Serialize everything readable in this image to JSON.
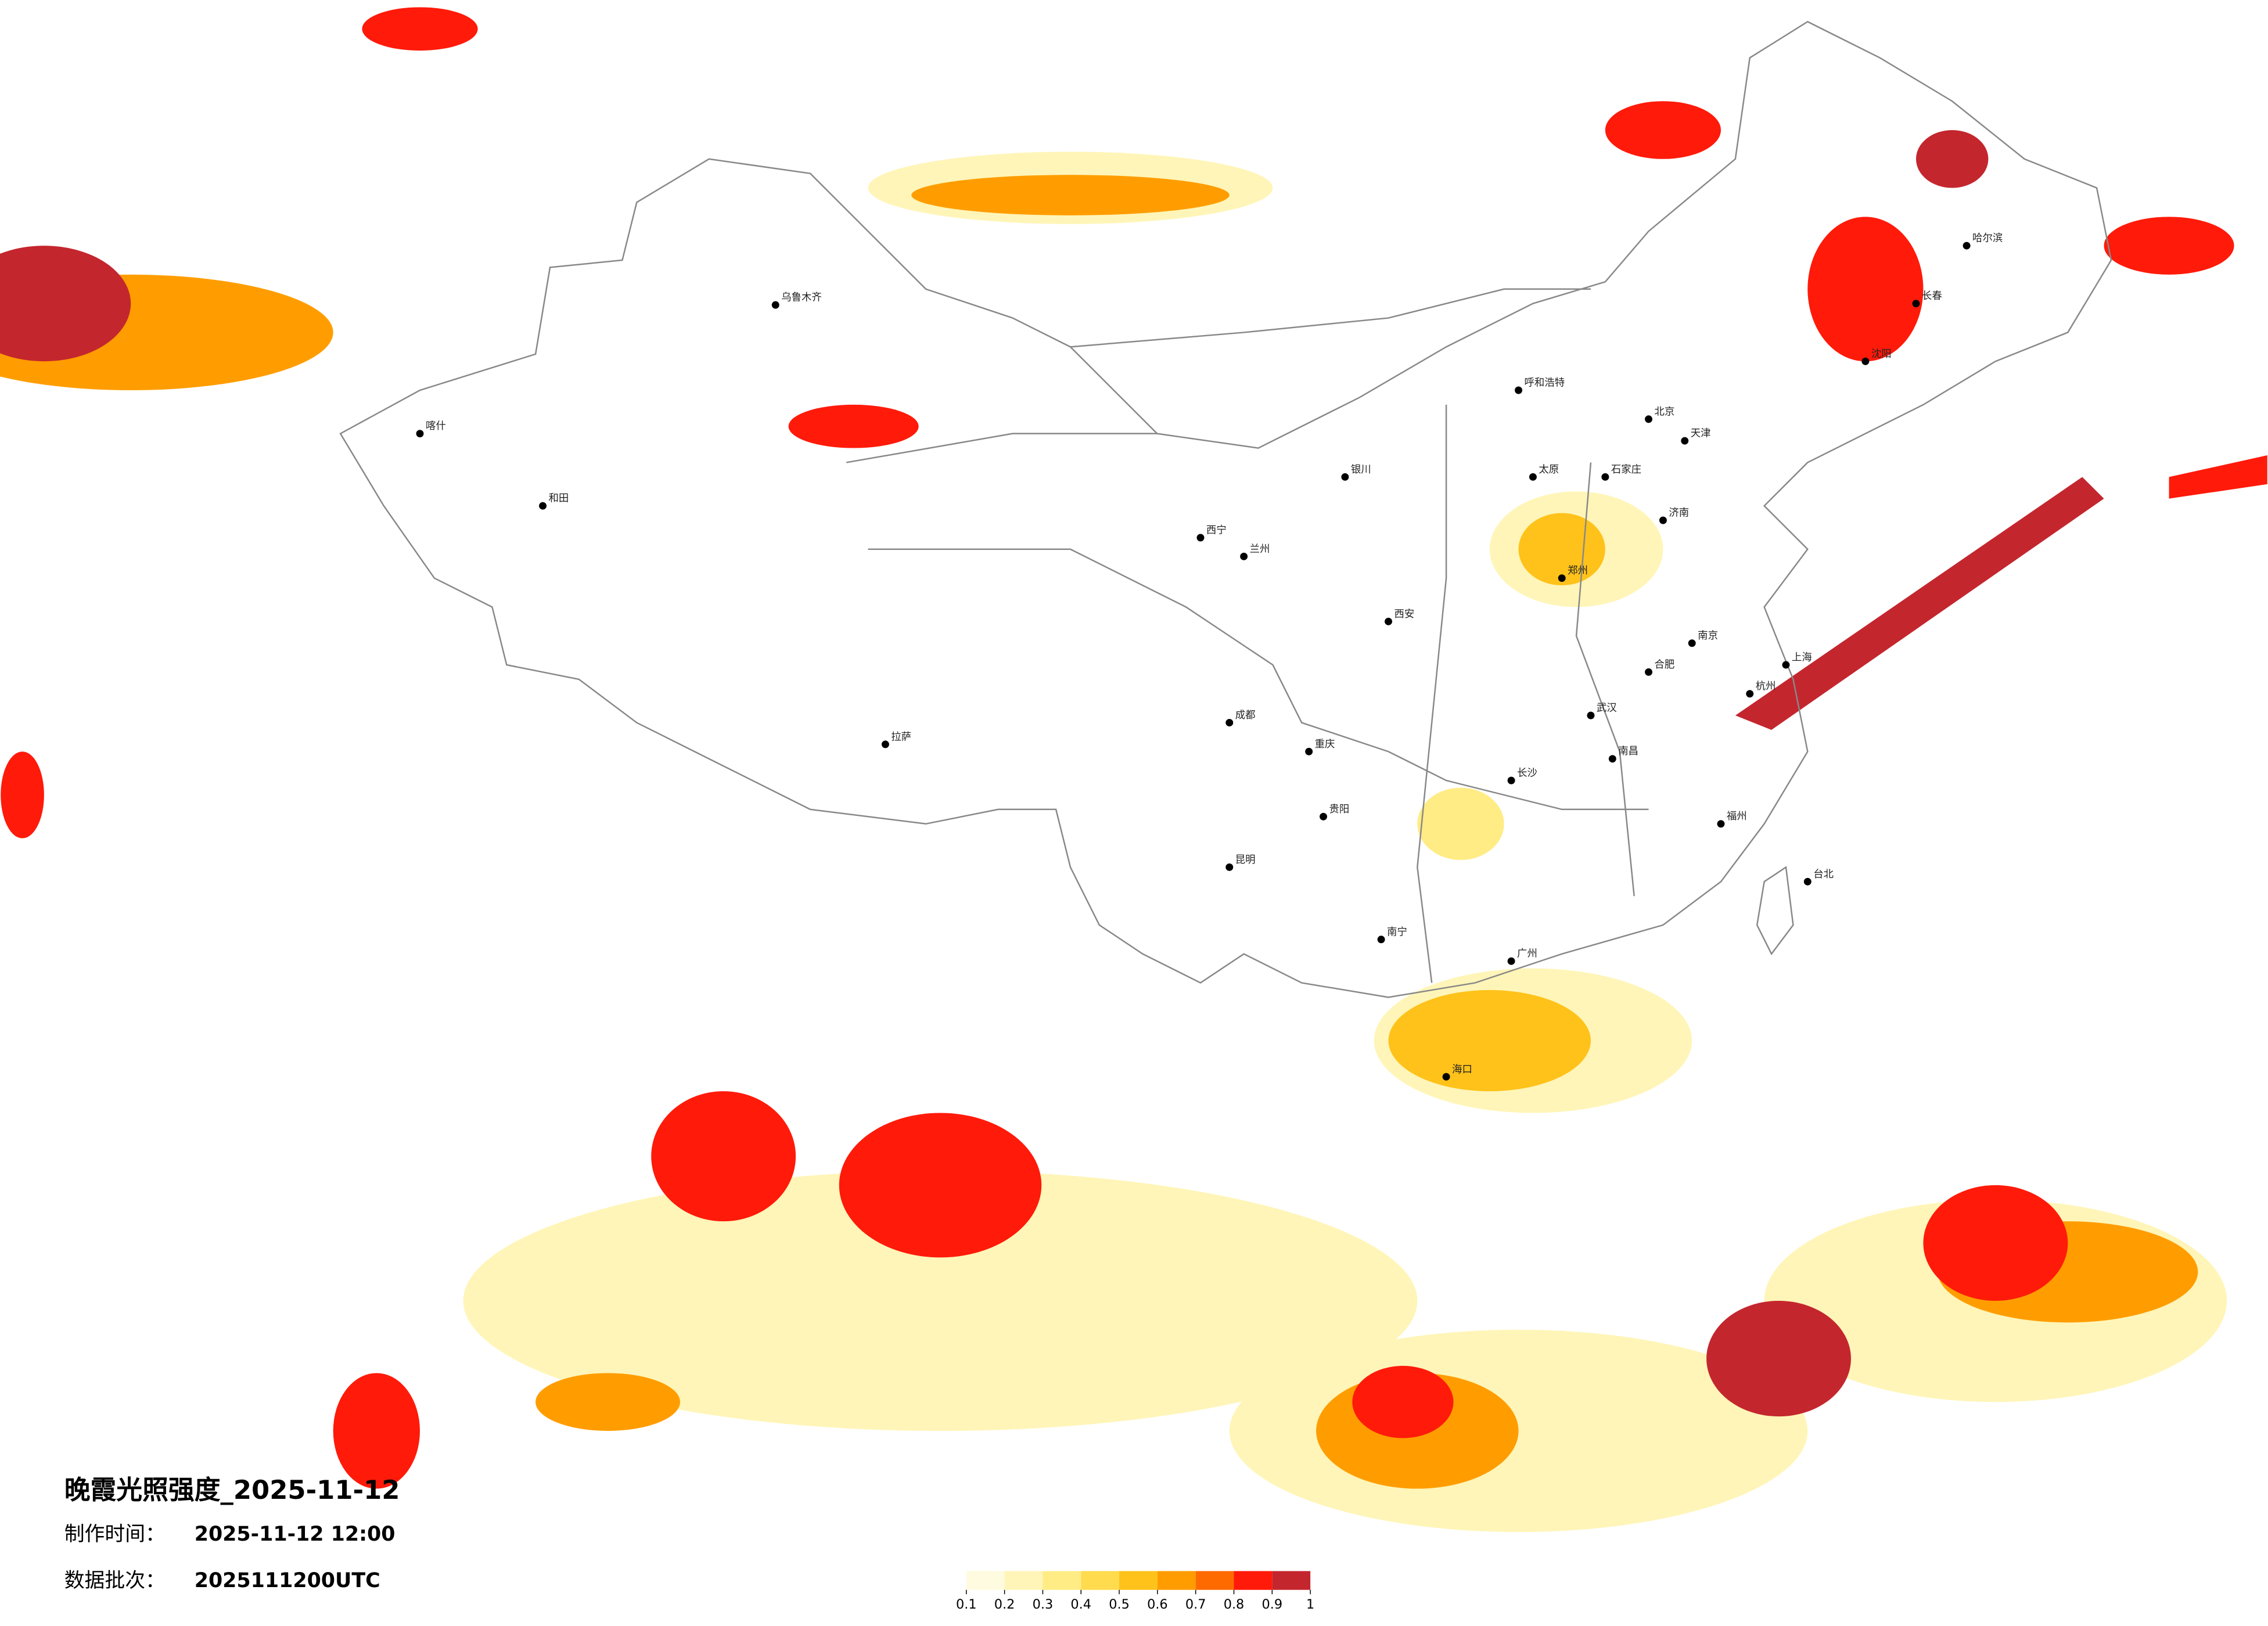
{
  "title": "晚霞光照强度_2025-11-12",
  "make_time": {
    "label": "制作时间：",
    "value": "2025-11-12 12:00"
  },
  "batch": {
    "label": "数据批次：",
    "value": "2025111200UTC"
  },
  "legend": {
    "ticks": [
      0.1,
      0.2,
      0.3,
      0.4,
      0.5,
      0.6,
      0.7,
      0.8,
      0.9,
      1
    ],
    "colors": [
      "#fffbe0",
      "#fff5b8",
      "#ffec85",
      "#ffdb4d",
      "#ffc21a",
      "#ff9d00",
      "#ff6a00",
      "#ff1a0a",
      "#c4262e"
    ]
  },
  "cities": [
    "乌鲁木齐",
    "拉萨",
    "西宁",
    "兰州",
    "成都",
    "重庆",
    "昆明",
    "贵阳",
    "南宁",
    "广州",
    "长沙",
    "武汉",
    "郑州",
    "西安",
    "太原",
    "石家庄",
    "北京",
    "天津",
    "济南",
    "南京",
    "上海",
    "杭州",
    "福州",
    "南昌",
    "合肥",
    "哈尔滨",
    "长春",
    "沈阳",
    "呼和浩特",
    "银川",
    "海口",
    "台北",
    "喀什",
    "和田"
  ]
}
